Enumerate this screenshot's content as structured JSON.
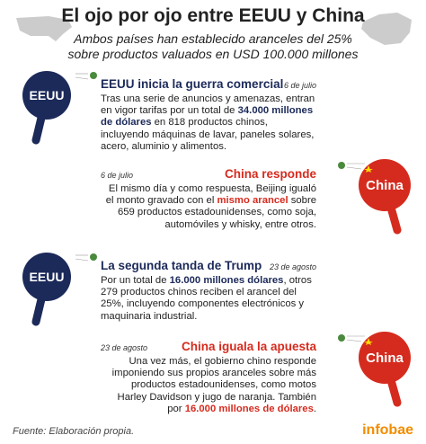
{
  "header": {
    "title": "El ojo por ojo entre EEUU y China",
    "subtitle": [
      "Ambos países han establecido aranceles del 25%",
      "sobre productos valuados en USD 100.000 millones"
    ]
  },
  "events": [
    {
      "paddle": "EEUU",
      "color": "#1c2a5a",
      "heading": "EEUU inicia la guerra comercial",
      "date": "6 de julio",
      "body": [
        {
          "text": "Tras una serie de anuncios y amenazas, entran en vigor tarifas por un total de "
        },
        {
          "text": "34.000 millones de dólares",
          "emphasis": true
        },
        {
          "text": " en 818 productos chinos, incluyendo máquinas de lavar, paneles solares, acero, aluminio y alimentos."
        }
      ]
    },
    {
      "paddle": "China",
      "color": "#d52b1e",
      "heading": "China responde",
      "date": "6 de julio",
      "body": [
        {
          "text": "El mismo día y como respuesta, Beijing igualó el monto gravado con el "
        },
        {
          "text": "mismo arancel",
          "emphasis": true
        },
        {
          "text": " sobre 659 productos estadounidenses, como soja, automóviles y whisky, entre otros."
        }
      ]
    },
    {
      "paddle": "EEUU",
      "color": "#1c2a5a",
      "heading": "La segunda tanda de Trump",
      "date": "23 de agosto",
      "body": [
        {
          "text": "Por un total de "
        },
        {
          "text": "16.000 millones dólares",
          "emphasis": true
        },
        {
          "text": ", otros 279 productos chinos reciben el arancel del 25%, incluyendo componentes electrónicos y maquinaria industrial."
        }
      ]
    },
    {
      "paddle": "China",
      "color": "#d52b1e",
      "heading": "China iguala la apuesta",
      "date": "23 de agosto",
      "body": [
        {
          "text": "Una vez más, el gobierno chino responde imponiendo sus propios aranceles sobre más productos estadounidenses, como motos Harley Davidson y jugo de naranja. También por "
        },
        {
          "text": "16.000 millones de dólares",
          "emphasis": true
        },
        {
          "text": "."
        }
      ]
    }
  ],
  "footer": {
    "source": "Fuente: Elaboración propia.",
    "brand": "infobae"
  }
}
